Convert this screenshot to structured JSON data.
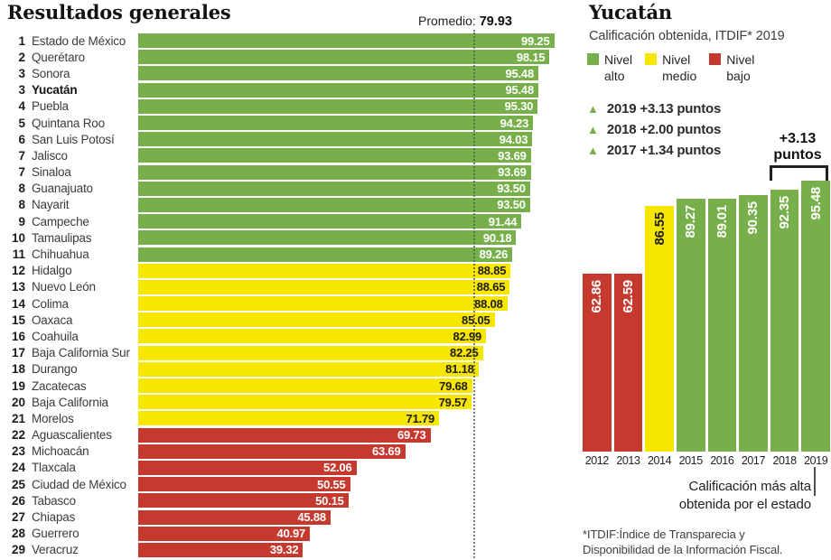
{
  "colors": {
    "alto": "#77b04a",
    "medio": "#f7e600",
    "bajo": "#c5392f",
    "bar_text_light": "#ffffff",
    "bar_text_dark": "#1d1d1d",
    "average_line": "#505050"
  },
  "left_chart": {
    "title": "Resultados generales",
    "average_label": "Promedio:",
    "average_value": "79.93"
  },
  "right_panel": {
    "title": "Yucatán",
    "subtitle": "Calificación obtenida, ITDIF* 2019",
    "legend": {
      "items": [
        {
          "line1": "Nivel",
          "line2": "alto",
          "color": "#77b04a"
        },
        {
          "line1": "Nivel",
          "line2": "medio",
          "color": "#f7e600"
        },
        {
          "line1": "Nivel",
          "line2": "bajo",
          "color": "#c5392f"
        }
      ]
    },
    "gains": [
      {
        "text": "2019 +3.13 puntos"
      },
      {
        "text": "2018 +2.00 puntos"
      },
      {
        "text": "2017 +1.34 puntos"
      }
    ],
    "bracket_label_line1": "+3.13",
    "bracket_label_line2": "puntos",
    "caption_line1": "Calificación más alta",
    "caption_line2": "obtenida por el estado",
    "footnote_line1": "*ITDIF:Índice de Transparecia y",
    "footnote_line2": "Disponibilidad de la Información Fiscal."
  },
  "chart_data": [
    {
      "type": "bar",
      "orientation": "horizontal",
      "title": "Resultados generales",
      "value_axis_range": [
        0,
        100
      ],
      "average": 79.93,
      "legend": [
        "Nivel alto",
        "Nivel medio",
        "Nivel bajo"
      ],
      "rows": [
        {
          "rank": "1",
          "state": "Estado de México",
          "value": 99.25,
          "level": "alto",
          "bold": false
        },
        {
          "rank": "2",
          "state": "Querétaro",
          "value": 98.15,
          "level": "alto",
          "bold": false
        },
        {
          "rank": "3",
          "state": "Sonora",
          "value": 95.48,
          "level": "alto",
          "bold": false
        },
        {
          "rank": "3",
          "state": "Yucatán",
          "value": 95.48,
          "level": "alto",
          "bold": true
        },
        {
          "rank": "4",
          "state": "Puebla",
          "value": 95.3,
          "level": "alto",
          "bold": false
        },
        {
          "rank": "5",
          "state": "Quintana Roo",
          "value": 94.23,
          "level": "alto",
          "bold": false
        },
        {
          "rank": "6",
          "state": "San Luis Potosí",
          "value": 94.03,
          "level": "alto",
          "bold": false
        },
        {
          "rank": "7",
          "state": "Jalisco",
          "value": 93.69,
          "level": "alto",
          "bold": false
        },
        {
          "rank": "7",
          "state": "Sinaloa",
          "value": 93.69,
          "level": "alto",
          "bold": false
        },
        {
          "rank": "8",
          "state": "Guanajuato",
          "value": 93.5,
          "level": "alto",
          "bold": false
        },
        {
          "rank": "8",
          "state": "Nayarit",
          "value": 93.5,
          "level": "alto",
          "bold": false
        },
        {
          "rank": "9",
          "state": "Campeche",
          "value": 91.44,
          "level": "alto",
          "bold": false
        },
        {
          "rank": "10",
          "state": "Tamaulipas",
          "value": 90.18,
          "level": "alto",
          "bold": false
        },
        {
          "rank": "11",
          "state": "Chihuahua",
          "value": 89.26,
          "level": "alto",
          "bold": false
        },
        {
          "rank": "12",
          "state": "Hidalgo",
          "value": 88.85,
          "level": "medio",
          "bold": false
        },
        {
          "rank": "13",
          "state": "Nuevo León",
          "value": 88.65,
          "level": "medio",
          "bold": false
        },
        {
          "rank": "14",
          "state": "Colima",
          "value": 88.08,
          "level": "medio",
          "bold": false
        },
        {
          "rank": "15",
          "state": "Oaxaca",
          "value": 85.05,
          "level": "medio",
          "bold": false
        },
        {
          "rank": "16",
          "state": "Coahuila",
          "value": 82.99,
          "level": "medio",
          "bold": false
        },
        {
          "rank": "17",
          "state": "Baja California Sur",
          "value": 82.25,
          "level": "medio",
          "bold": false
        },
        {
          "rank": "18",
          "state": "Durango",
          "value": 81.18,
          "level": "medio",
          "bold": false
        },
        {
          "rank": "19",
          "state": "Zacatecas",
          "value": 79.68,
          "level": "medio",
          "bold": false
        },
        {
          "rank": "20",
          "state": "Baja California",
          "value": 79.57,
          "level": "medio",
          "bold": false
        },
        {
          "rank": "21",
          "state": "Morelos",
          "value": 71.79,
          "level": "medio",
          "bold": false
        },
        {
          "rank": "22",
          "state": "Aguascalientes",
          "value": 69.73,
          "level": "bajo",
          "bold": false
        },
        {
          "rank": "23",
          "state": "Michoacán",
          "value": 63.69,
          "level": "bajo",
          "bold": false
        },
        {
          "rank": "24",
          "state": "Tlaxcala",
          "value": 52.06,
          "level": "bajo",
          "bold": false
        },
        {
          "rank": "25",
          "state": "Ciudad de México",
          "value": 50.55,
          "level": "bajo",
          "bold": false
        },
        {
          "rank": "26",
          "state": "Tabasco",
          "value": 50.15,
          "level": "bajo",
          "bold": false
        },
        {
          "rank": "27",
          "state": "Chiapas",
          "value": 45.88,
          "level": "bajo",
          "bold": false
        },
        {
          "rank": "28",
          "state": "Guerrero",
          "value": 40.97,
          "level": "bajo",
          "bold": false
        },
        {
          "rank": "29",
          "state": "Veracruz",
          "value": 39.32,
          "level": "bajo",
          "bold": false
        }
      ]
    },
    {
      "type": "bar",
      "orientation": "vertical",
      "title": "Yucatán — Calificación obtenida, ITDIF* 2019",
      "value_axis_range": [
        0,
        100
      ],
      "categories": [
        "2012",
        "2013",
        "2014",
        "2015",
        "2016",
        "2017",
        "2018",
        "2019"
      ],
      "values": [
        62.86,
        62.59,
        86.55,
        89.27,
        89.01,
        90.35,
        92.35,
        95.48
      ],
      "levels": [
        "bajo",
        "bajo",
        "medio",
        "alto",
        "alto",
        "alto",
        "alto",
        "alto"
      ],
      "annotation": "+3.13 puntos"
    }
  ]
}
